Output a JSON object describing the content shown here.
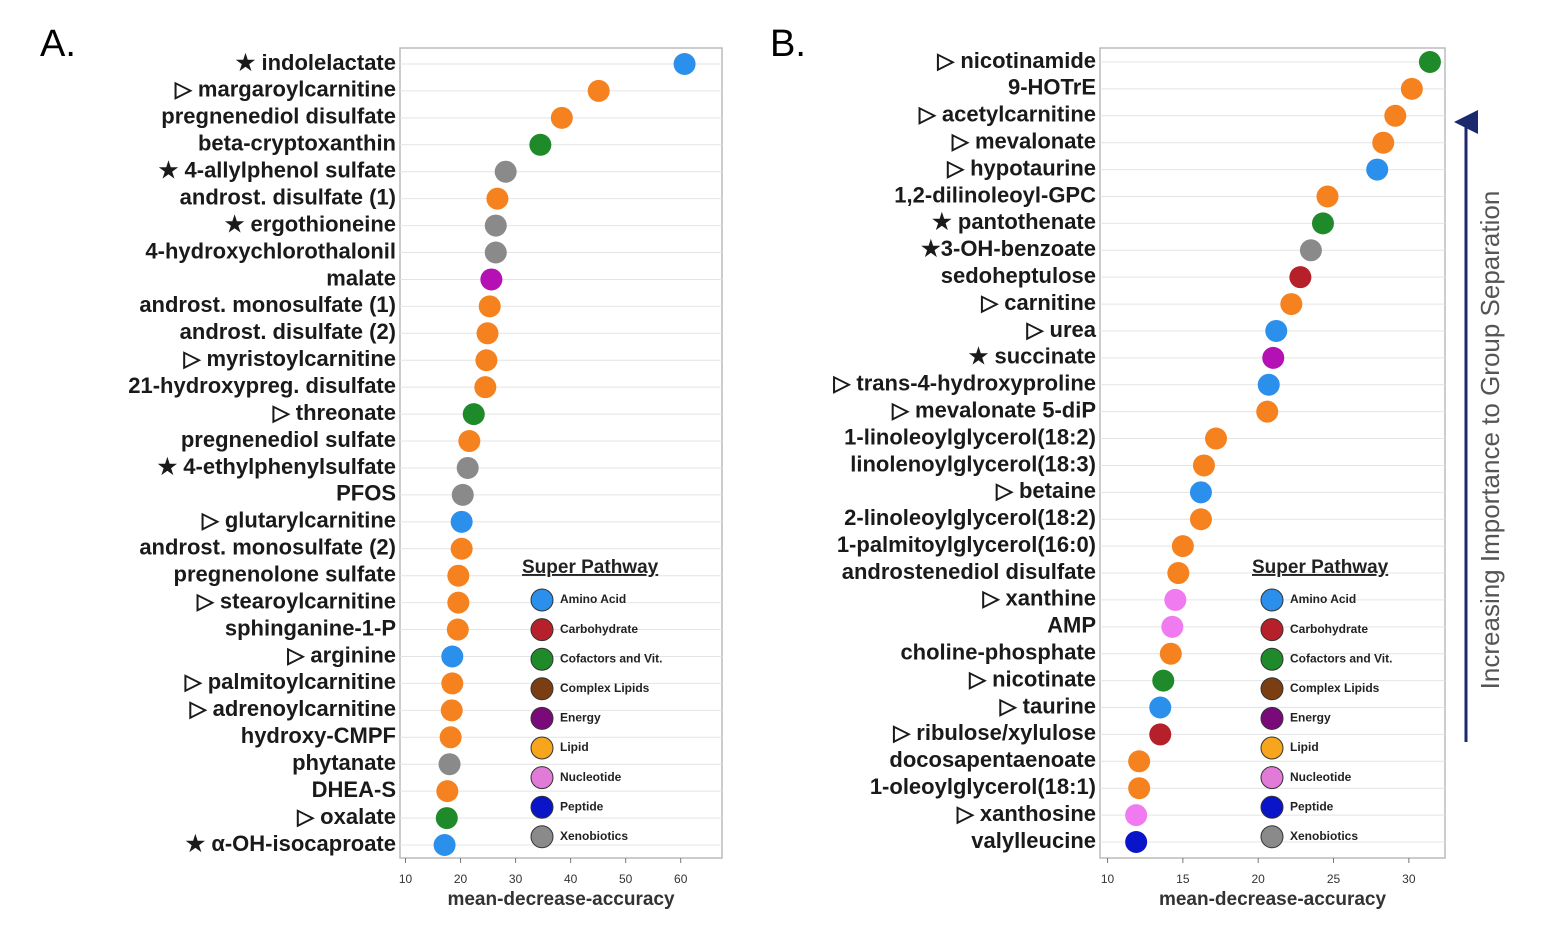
{
  "chart_data": [
    {
      "type": "dot",
      "panel_label": "A.",
      "xlabel": "mean-decrease-accuracy",
      "xlim": [
        9,
        67.5
      ],
      "xticks": [
        10,
        20,
        30,
        40,
        50,
        60
      ],
      "categories": [
        "★ indolelactate",
        "▷ margaroylcarnitine",
        "pregnenediol disulfate",
        "beta-cryptoxanthin",
        "★ 4-allylphenol sulfate",
        "androst. disulfate (1)",
        "★ ergothioneine",
        "4-hydroxychlorothalonil",
        "malate",
        "androst. monosulfate (1)",
        "androst. disulfate (2)",
        "▷ myristoylcarnitine",
        "21-hydroxypreg. disulfate",
        "▷ threonate",
        "pregnenediol sulfate",
        "★ 4-ethylphenylsulfate",
        "PFOS",
        "▷ glutarylcarnitine",
        "androst. monosulfate (2)",
        "pregnenolone sulfate",
        "▷ stearoylcarnitine",
        "sphinganine-1-P",
        "▷ arginine",
        "▷ palmitoylcarnitine",
        "▷ adrenoylcarnitine",
        "hydroxy-CMPF",
        "phytanate",
        "DHEA-S",
        "▷ oxalate",
        "★ α-OH-isocaproate"
      ],
      "values": [
        60.7,
        45.1,
        38.4,
        34.5,
        28.2,
        26.7,
        26.4,
        26.4,
        25.6,
        25.3,
        24.9,
        24.7,
        24.5,
        22.4,
        21.6,
        21.3,
        20.4,
        20.2,
        20.2,
        19.6,
        19.6,
        19.5,
        18.5,
        18.5,
        18.4,
        18.2,
        18.0,
        17.6,
        17.5,
        17.1
      ],
      "point_colors": [
        "#2b8fec",
        "#f5821f",
        "#f5821f",
        "#1f8a2a",
        "#8a8a8a",
        "#f5821f",
        "#8a8a8a",
        "#8a8a8a",
        "#b410b4",
        "#f5821f",
        "#f5821f",
        "#f5821f",
        "#f5821f",
        "#1f8a2a",
        "#f5821f",
        "#8a8a8a",
        "#8a8a8a",
        "#2b8fec",
        "#f5821f",
        "#f5821f",
        "#f5821f",
        "#f5821f",
        "#2b8fec",
        "#f5821f",
        "#f5821f",
        "#f5821f",
        "#8a8a8a",
        "#f5821f",
        "#1f8a2a",
        "#2b8fec"
      ],
      "legend": {
        "title": "Super Pathway",
        "items": [
          {
            "name": "Amino Acid",
            "color": "#2b8fec"
          },
          {
            "name": "Carbohydrate",
            "color": "#b5202a"
          },
          {
            "name": "Cofactors and Vit.",
            "color": "#1f8a2a"
          },
          {
            "name": "Complex Lipids",
            "color": "#7a3e12"
          },
          {
            "name": "Energy",
            "color": "#7a0a7a"
          },
          {
            "name": "Lipid",
            "color": "#f7a51c"
          },
          {
            "name": "Nucleotide",
            "color": "#e27ad8"
          },
          {
            "name": "Peptide",
            "color": "#0a14c8"
          },
          {
            "name": "Xenobiotics",
            "color": "#8a8a8a"
          }
        ]
      }
    },
    {
      "type": "dot",
      "panel_label": "B.",
      "xlabel": "mean-decrease-accuracy",
      "annotation": "Increasing Importance to Group Separation",
      "xlim": [
        9.5,
        32.4
      ],
      "xticks": [
        10,
        15,
        20,
        25,
        30
      ],
      "categories": [
        "▷ nicotinamide",
        "9-HOTrE",
        "▷ acetylcarnitine",
        "▷ mevalonate",
        "▷ hypotaurine",
        "1,2-dilinoleoyl-GPC",
        "★ pantothenate",
        "★3-OH-benzoate",
        "sedoheptulose",
        "▷ carnitine",
        "▷ urea",
        "★ succinate",
        "▷ trans-4-hydroxyproline",
        "▷ mevalonate 5-diP",
        "1-linoleoylglycerol(18:2)",
        "linolenoylglycerol(18:3)",
        "▷ betaine",
        "2-linoleoylglycerol(18:2)",
        "1-palmitoylglycerol(16:0)",
        "androstenediol disulfate",
        "▷ xanthine",
        "AMP",
        "choline-phosphate",
        "▷ nicotinate",
        "▷ taurine",
        "▷ ribulose/xylulose",
        "docosapentaenoate",
        "1-oleoylglycerol(18:1)",
        "▷ xanthosine",
        "valylleucine"
      ],
      "values": [
        31.4,
        30.2,
        29.1,
        28.3,
        27.9,
        24.6,
        24.3,
        23.5,
        22.8,
        22.2,
        21.2,
        21.0,
        20.7,
        20.6,
        17.2,
        16.4,
        16.2,
        16.2,
        15.0,
        14.7,
        14.5,
        14.3,
        14.2,
        13.7,
        13.5,
        13.5,
        12.1,
        12.1,
        11.9,
        11.9
      ],
      "point_colors": [
        "#1f8a2a",
        "#f5821f",
        "#f5821f",
        "#f5821f",
        "#2b8fec",
        "#f5821f",
        "#1f8a2a",
        "#8a8a8a",
        "#b5202a",
        "#f5821f",
        "#2b8fec",
        "#b410b4",
        "#2b8fec",
        "#f5821f",
        "#f5821f",
        "#f5821f",
        "#2b8fec",
        "#f5821f",
        "#f5821f",
        "#f5821f",
        "#f07af0",
        "#f07af0",
        "#f5821f",
        "#1f8a2a",
        "#2b8fec",
        "#b5202a",
        "#f5821f",
        "#f5821f",
        "#f07af0",
        "#0a14c8"
      ],
      "legend": {
        "title": "Super Pathway",
        "items": [
          {
            "name": "Amino Acid",
            "color": "#2b8fec"
          },
          {
            "name": "Carbohydrate",
            "color": "#b5202a"
          },
          {
            "name": "Cofactors and Vit.",
            "color": "#1f8a2a"
          },
          {
            "name": "Complex Lipids",
            "color": "#7a3e12"
          },
          {
            "name": "Energy",
            "color": "#7a0a7a"
          },
          {
            "name": "Lipid",
            "color": "#f7a51c"
          },
          {
            "name": "Nucleotide",
            "color": "#e27ad8"
          },
          {
            "name": "Peptide",
            "color": "#0a14c8"
          },
          {
            "name": "Xenobiotics",
            "color": "#8a8a8a"
          }
        ]
      }
    }
  ]
}
